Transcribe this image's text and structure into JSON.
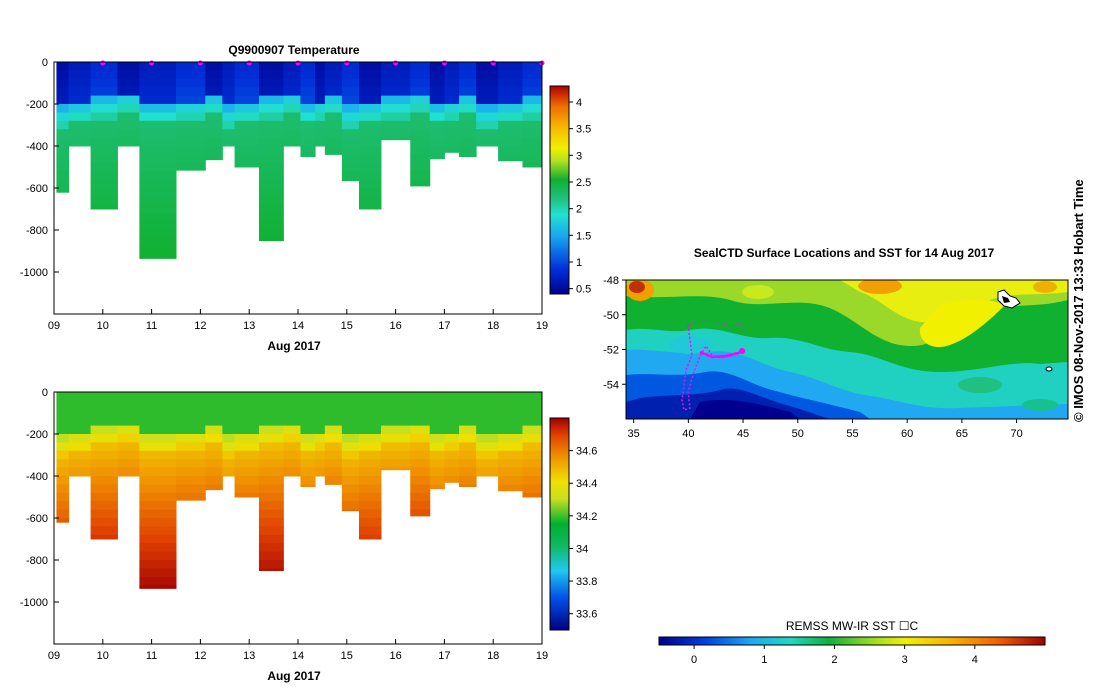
{
  "chart_data": [
    {
      "type": "heatmap",
      "title": "Q9900907  Temperature",
      "xlabel": "Aug 2017",
      "x_ticks": [
        "09",
        "10",
        "11",
        "12",
        "13",
        "14",
        "15",
        "16",
        "17",
        "18",
        "19"
      ],
      "xlim": [
        9,
        19
      ],
      "y_ticks": [
        "0",
        "-200",
        "-400",
        "-600",
        "-800",
        "-1000"
      ],
      "ylim": [
        -1200,
        0
      ],
      "colorbar_ticks": [
        "0.5",
        "1",
        "1.5",
        "2",
        "2.5",
        "3",
        "3.5",
        "4"
      ],
      "colorbar_range": [
        0.4,
        4.3
      ],
      "profile_markers": [
        10,
        11,
        12,
        13,
        14,
        15,
        16,
        17,
        18,
        19
      ]
    },
    {
      "type": "heatmap",
      "title": "",
      "xlabel": "Aug 2017",
      "x_ticks": [
        "09",
        "10",
        "11",
        "12",
        "13",
        "14",
        "15",
        "16",
        "17",
        "18",
        "19"
      ],
      "xlim": [
        9,
        19
      ],
      "y_ticks": [
        "0",
        "-200",
        "-400",
        "-600",
        "-800",
        "-1000"
      ],
      "ylim": [
        -1200,
        0
      ],
      "colorbar_ticks": [
        "33.6",
        "33.8",
        "34",
        "34.2",
        "34.4",
        "34.6"
      ],
      "colorbar_range": [
        33.5,
        34.8
      ]
    },
    {
      "type": "heatmap",
      "title": "SealCTD Surface Locations and SST for 14 Aug 2017",
      "x_ticks": [
        "35",
        "40",
        "45",
        "50",
        "55",
        "60",
        "65",
        "70"
      ],
      "xlim": [
        34.3,
        74.7
      ],
      "y_ticks": [
        "-48",
        "-50",
        "-52",
        "-54"
      ],
      "ylim": [
        -56,
        -48
      ],
      "colorbar_label": "REMSS MW-IR SST ☐C",
      "colorbar_ticks": [
        "0",
        "1",
        "2",
        "3",
        "4"
      ],
      "colorbar_range": [
        -0.5,
        5
      ]
    }
  ],
  "credit": "©  IMOS 08-Nov-2017 13:33 Hobart Time",
  "colors": {
    "temperature_scale": [
      "#00008f",
      "#0030d8",
      "#18a8f0",
      "#22e0d0",
      "#20c080",
      "#10b030",
      "#b0e020",
      "#f0f000",
      "#f8b800",
      "#f07000",
      "#b00000"
    ],
    "salinity_scale": [
      "#000080",
      "#0050e8",
      "#20c8f0",
      "#10b860",
      "#00b030",
      "#c8e020",
      "#f0e000",
      "#f09000",
      "#e04000",
      "#a00000"
    ]
  }
}
